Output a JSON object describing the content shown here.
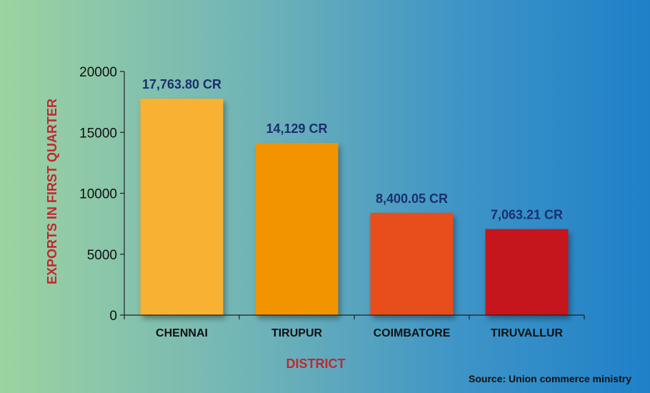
{
  "chart_data": {
    "type": "bar",
    "categories": [
      "CHENNAI",
      "TIRUPUR",
      "COIMBATORE",
      "TIRUVALLUR"
    ],
    "values": [
      17763.8,
      14129,
      8400.05,
      7063.21
    ],
    "value_labels": [
      "17,763.80 CR",
      "14,129 CR",
      "8,400.05 CR",
      "7,063.21 CR"
    ],
    "bar_colors": [
      "#f8b133",
      "#f29400",
      "#e84e1b",
      "#c4161c"
    ],
    "xlabel": "DISTRICT",
    "ylabel": "EXPORTS IN FIRST QUARTER",
    "ylim": [
      0,
      20000
    ],
    "yticks": [
      0,
      5000,
      10000,
      15000,
      20000
    ],
    "grid": false,
    "legend": "none"
  },
  "source": "Source: Union commerce ministry",
  "colors": {
    "axis_title": "#c4262e",
    "value_label": "#1b2f6e",
    "background_start": "#9dd3a0",
    "background_end": "#1f80c8"
  }
}
